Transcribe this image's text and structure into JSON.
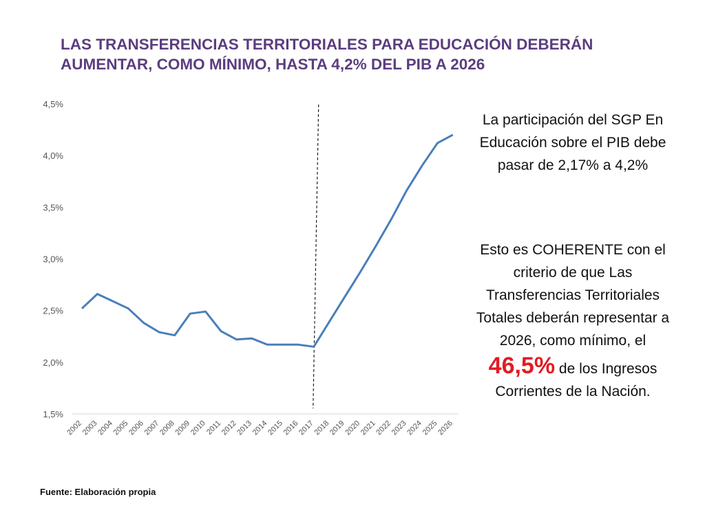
{
  "title": "LAS TRANSFERENCIAS TERRITORIALES PARA EDUCACIÓN DEBERÁN AUMENTAR, COMO MÍNIMO, HASTA 4,2% DEL PIB A 2026",
  "side_text": {
    "block1": "La participación del SGP En Educación sobre el PIB debe pasar de 2,17% a 4,2%",
    "block2_before": "Esto es COHERENTE con el criterio de que Las Transferencias Territoriales Totales deberán representar a 2026, como mínimo, el",
    "block2_highlight": "46,5%",
    "block2_after": "de los Ingresos Corrientes de la Nación."
  },
  "source": "Fuente: Elaboración propia",
  "colors": {
    "title": "#5b3d7e",
    "line": "#4a7ebb",
    "highlight": "#e31b23"
  },
  "chart_data": {
    "type": "line",
    "title": "",
    "xlabel": "",
    "ylabel": "",
    "ylim": [
      1.5,
      4.5
    ],
    "yticks": [
      "1,5%",
      "2,0%",
      "2,5%",
      "3,0%",
      "3,5%",
      "4,0%",
      "4,5%"
    ],
    "ytick_values": [
      1.5,
      2.0,
      2.5,
      3.0,
      3.5,
      4.0,
      4.5
    ],
    "categories": [
      "2002",
      "2003",
      "2004",
      "2005",
      "2006",
      "2007",
      "2008",
      "2009",
      "2010",
      "2011",
      "2012",
      "2013",
      "2014",
      "2015",
      "2016",
      "2017",
      "2018",
      "2019",
      "2020",
      "2021",
      "2022",
      "2023",
      "2024",
      "2025",
      "2026"
    ],
    "series": [
      {
        "values": [
          2.52,
          2.66,
          2.59,
          2.52,
          2.38,
          2.29,
          2.26,
          2.47,
          2.49,
          2.3,
          2.22,
          2.23,
          2.17,
          2.17,
          2.17,
          2.15,
          2.39,
          2.63,
          2.87,
          3.12,
          3.38,
          3.66,
          3.9,
          4.12,
          4.2
        ]
      }
    ],
    "divider_after": "2017",
    "grid": false,
    "legend": "none"
  }
}
